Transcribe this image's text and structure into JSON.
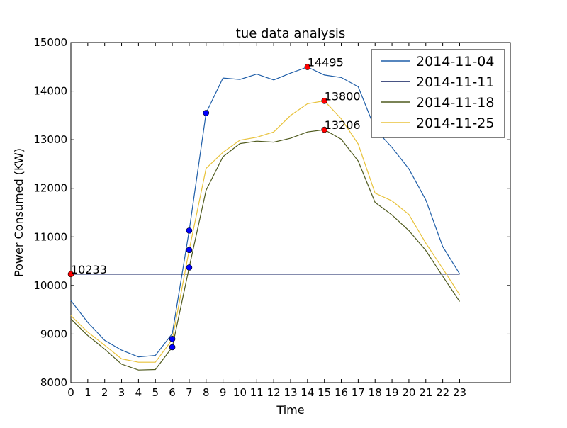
{
  "chart_data": {
    "type": "line",
    "title": "tue data analysis",
    "xlabel": "Time",
    "ylabel": "Power Consumed (KW)",
    "x": [
      0,
      1,
      2,
      3,
      4,
      5,
      6,
      7,
      8,
      9,
      10,
      11,
      12,
      13,
      14,
      15,
      16,
      17,
      18,
      19,
      20,
      21,
      22,
      23
    ],
    "x_tick_labels": [
      "0",
      "1",
      "2",
      "3",
      "4",
      "5",
      "6",
      "7",
      "8",
      "9",
      "10",
      "11",
      "12",
      "13",
      "14",
      "15",
      "16",
      "17",
      "18",
      "19",
      "20",
      "21",
      "22",
      "23"
    ],
    "xlim": [
      0,
      26
    ],
    "ylim": [
      8000,
      15000
    ],
    "y_ticks": [
      8000,
      9000,
      10000,
      11000,
      12000,
      13000,
      14000,
      15000
    ],
    "y_tick_labels": [
      "8000",
      "9000",
      "10000",
      "11000",
      "12000",
      "13000",
      "14000",
      "15000"
    ],
    "grid": false,
    "legend_position": "top-right",
    "series": [
      {
        "name": "2014-11-04",
        "color": "#1f5ea8",
        "values": [
          9690,
          9240,
          8870,
          8670,
          8530,
          8560,
          9010,
          11130,
          13550,
          14270,
          14240,
          14350,
          14230,
          14370,
          14495,
          14330,
          14280,
          14090,
          13220,
          12840,
          12400,
          11760,
          10800,
          10240
        ]
      },
      {
        "name": "2014-11-11",
        "color": "#0b1a5c",
        "values": [
          10233,
          10233,
          10233,
          10233,
          10233,
          10233,
          10233,
          10233,
          10233,
          10233,
          10233,
          10233,
          10233,
          10233,
          10233,
          10233,
          10233,
          10233,
          10233,
          10233,
          10233,
          10233,
          10233,
          10233
        ]
      },
      {
        "name": "2014-11-18",
        "color": "#4f5a1e",
        "values": [
          9310,
          8970,
          8690,
          8380,
          8260,
          8270,
          8730,
          10370,
          11960,
          12650,
          12920,
          12970,
          12950,
          13030,
          13160,
          13206,
          13010,
          12560,
          11710,
          11450,
          11130,
          10720,
          10190,
          9670
        ]
      },
      {
        "name": "2014-11-25",
        "color": "#e8c23a",
        "values": [
          9380,
          9040,
          8770,
          8490,
          8420,
          8420,
          8890,
          10730,
          12410,
          12740,
          12990,
          13050,
          13160,
          13500,
          13740,
          13800,
          13430,
          12910,
          11900,
          11740,
          11460,
          10870,
          10350,
          9810
        ]
      }
    ],
    "markers_blue": [
      {
        "x": 6,
        "y": 8900
      },
      {
        "x": 6,
        "y": 8730
      },
      {
        "x": 7,
        "y": 11130
      },
      {
        "x": 7,
        "y": 10730
      },
      {
        "x": 7,
        "y": 10370
      },
      {
        "x": 8,
        "y": 13550
      }
    ],
    "markers_red": [
      {
        "x": 0,
        "y": 10233,
        "label": "10233"
      },
      {
        "x": 14,
        "y": 14495,
        "label": "14495"
      },
      {
        "x": 15,
        "y": 13800,
        "label": "13800"
      },
      {
        "x": 15,
        "y": 13206,
        "label": "13206"
      }
    ]
  }
}
